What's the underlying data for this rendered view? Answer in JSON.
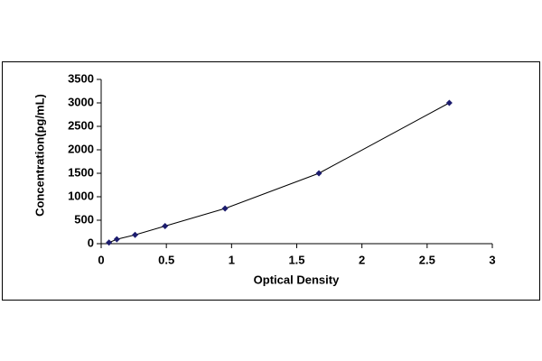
{
  "chart_data": {
    "type": "scatter",
    "x_label": "Optical Density",
    "y_label": "Concentration(pg/mL)",
    "series": [
      {
        "color": "#1c1c6e",
        "x": [
          0.06,
          0.12,
          0.26,
          0.49,
          0.95,
          1.67,
          2.67
        ],
        "values": [
          23,
          94,
          188,
          375,
          750,
          1500,
          3000
        ]
      }
    ],
    "xlim": [
      0,
      3
    ],
    "xticks": [
      0,
      0.5,
      1,
      1.5,
      2,
      2.5,
      3
    ],
    "ylim": [
      0,
      3500
    ],
    "yticks": [
      0,
      500,
      1000,
      1500,
      2000,
      2500,
      3000,
      3500
    ],
    "grid": false
  }
}
